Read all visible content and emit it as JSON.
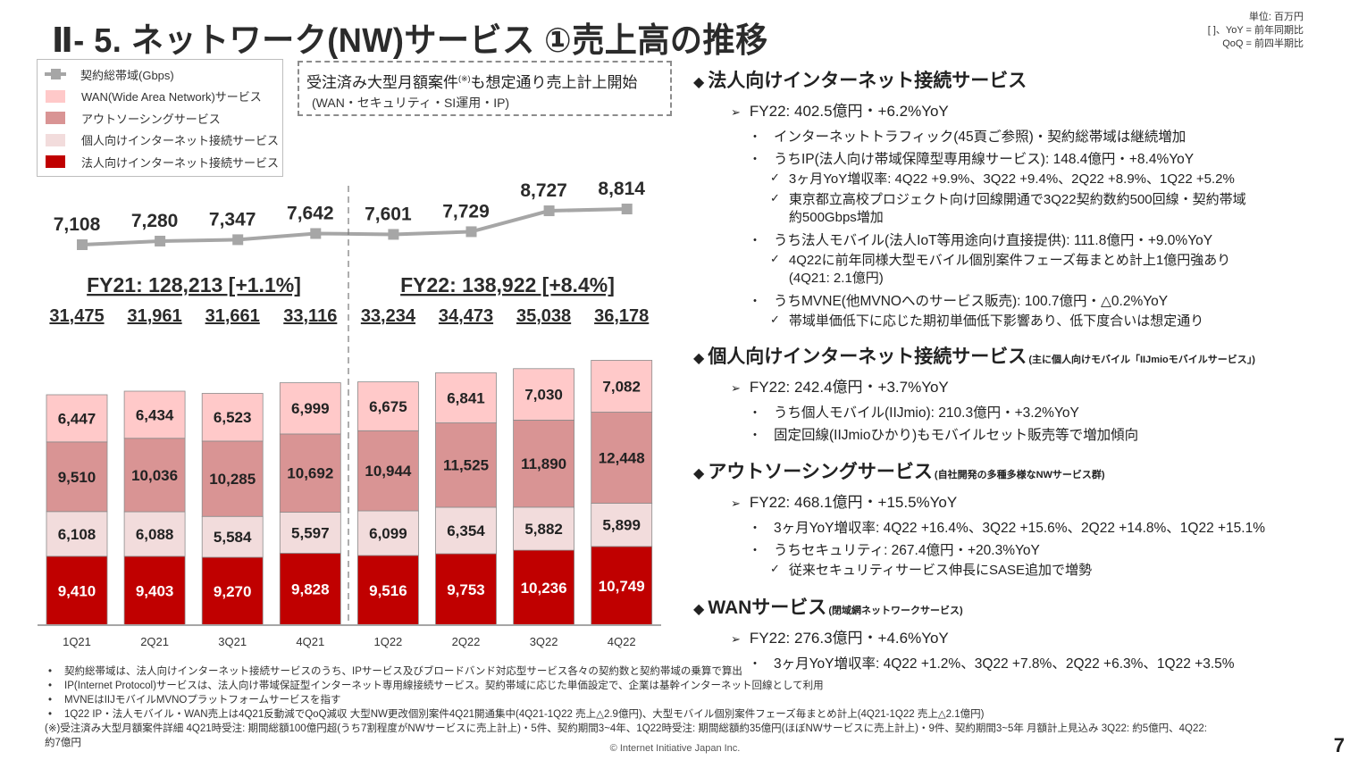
{
  "title": "Ⅱ- 5.  ネットワーク(NW)サービス  ①売上高の推移",
  "unit_note": [
    "単位: 百万円",
    "[ ]、YoY = 前年同期比",
    "QoQ = 前四半期比"
  ],
  "legend": [
    {
      "label": "契約総帯域(Gbps)",
      "icon": "line-marker-icon",
      "color": "#a6a6a6"
    },
    {
      "label": "WAN(Wide Area Network)サービス",
      "color": "#ffc9c9"
    },
    {
      "label": "アウトソーシングサービス",
      "color": "#d99494"
    },
    {
      "label": "個人向けインターネット接続サービス",
      "color": "#f2dcdc"
    },
    {
      "label": "法人向けインターネット接続サービス",
      "color": "#c00000"
    }
  ],
  "callout": {
    "line1": "受注済み大型月額案件",
    "note_mark": "(※)",
    "line1_rest": "も想定通り売上計上開始",
    "line2": "(WAN・セキュリティ・SI運用・IP)"
  },
  "chart_data": {
    "type": "bar",
    "stacked": true,
    "title": "ネットワーク(NW)サービス 売上高の推移",
    "unit": "百万円",
    "categories": [
      "1Q21",
      "2Q21",
      "3Q21",
      "4Q21",
      "1Q22",
      "2Q22",
      "3Q22",
      "4Q22"
    ],
    "series": [
      {
        "name": "法人向けインターネット接続サービス",
        "color": "#c00000",
        "values": [
          9410,
          9403,
          9270,
          9828,
          9516,
          9753,
          10236,
          10749
        ]
      },
      {
        "name": "個人向けインターネット接続サービス",
        "color": "#f2dcdc",
        "values": [
          6108,
          6088,
          5584,
          5597,
          6099,
          6354,
          5882,
          5899
        ]
      },
      {
        "name": "アウトソーシングサービス",
        "color": "#d99494",
        "values": [
          9510,
          10036,
          10285,
          10692,
          10944,
          11525,
          11890,
          12448
        ]
      },
      {
        "name": "WAN(Wide Area Network)サービス",
        "color": "#ffc9c9",
        "values": [
          6447,
          6434,
          6523,
          6999,
          6675,
          6841,
          7030,
          7082
        ]
      }
    ],
    "totals": [
      31475,
      31961,
      31661,
      33116,
      33234,
      34473,
      35038,
      36178
    ],
    "totals_display": [
      "31,475",
      "31,961",
      "31,661",
      "33,116",
      "33,234",
      "34,473",
      "35,038",
      "36,178"
    ],
    "line_series": {
      "name": "契約総帯域(Gbps)",
      "color": "#a6a6a6",
      "values": [
        7108,
        7280,
        7347,
        7642,
        7601,
        7729,
        8727,
        8814
      ],
      "display": [
        "7,108",
        "7,280",
        "7,347",
        "7,642",
        "7,601",
        "7,729",
        "8,727",
        "8,814"
      ]
    },
    "fiscal_years": [
      {
        "label": "FY21: 128,213 [+1.1%]",
        "total": 128213,
        "yoy_pct": 1.1
      },
      {
        "label": "FY22: 138,922 [+8.4%]",
        "total": 138922,
        "yoy_pct": 8.4
      }
    ],
    "xlabel": "",
    "ylabel": "",
    "grid": false,
    "legend_position": "top-left"
  },
  "sections": [
    {
      "heading": "法人向けインターネット接続サービス",
      "sub": "",
      "items": [
        {
          "level": 1,
          "text": "FY22: 402.5億円・+6.2%YoY"
        },
        {
          "level": 2,
          "text": "インターネットトラフィック(45頁ご参照)・契約総帯域は継続増加"
        },
        {
          "level": 2,
          "text": "うちIP(法人向け帯域保障型専用線サービス): 148.4億円・+8.4%YoY"
        },
        {
          "level": 3,
          "text": "3ヶ月YoY増収率: 4Q22 +9.9%、3Q22 +9.4%、2Q22 +8.9%、1Q22 +5.2%"
        },
        {
          "level": 3,
          "text": "東京都立高校プロジェクト向け回線開通で3Q22契約数約500回線・契約帯域\n約500Gbps増加"
        },
        {
          "level": 2,
          "text": "うち法人モバイル(法人IoT等用途向け直接提供): 111.8億円・+9.0%YoY"
        },
        {
          "level": 3,
          "text": "4Q22に前年同様大型モバイル個別案件フェーズ毎まとめ計上1億円強あり\n(4Q21: 2.1億円)"
        },
        {
          "level": 2,
          "text": "うちMVNE(他MVNOへのサービス販売): 100.7億円・△0.2%YoY"
        },
        {
          "level": 3,
          "text": "帯域単価低下に応じた期初単価低下影響あり、低下度合いは想定通り"
        }
      ]
    },
    {
      "heading": "個人向けインターネット接続サービス",
      "sub": "(主に個人向けモバイル「IIJmioモバイルサービス」)",
      "items": [
        {
          "level": 1,
          "text": "FY22: 242.4億円・+3.7%YoY"
        },
        {
          "level": 2,
          "text": "うち個人モバイル(IIJmio): 210.3億円・+3.2%YoY"
        },
        {
          "level": 2,
          "text": "固定回線(IIJmioひかり)もモバイルセット販売等で増加傾向"
        }
      ]
    },
    {
      "heading": "アウトソーシングサービス",
      "sub": "(自社開発の多種多様なNWサービス群)",
      "items": [
        {
          "level": 1,
          "text": "FY22: 468.1億円・+15.5%YoY"
        },
        {
          "level": 2,
          "text": "3ヶ月YoY増収率: 4Q22 +16.4%、3Q22 +15.6%、2Q22 +14.8%、1Q22 +15.1%"
        },
        {
          "level": 2,
          "text": "うちセキュリティ: 267.4億円・+20.3%YoY"
        },
        {
          "level": 3,
          "text": "従来セキュリティサービス伸長にSASE追加で増勢"
        }
      ]
    },
    {
      "heading": "WANサービス",
      "sub": "(閉域網ネットワークサービス)",
      "items": [
        {
          "level": 1,
          "text": "FY22: 276.3億円・+4.6%YoY"
        },
        {
          "level": 2,
          "text": "3ヶ月YoY増収率: 4Q22 +1.2%、3Q22 +7.8%、2Q22 +6.3%、1Q22 +3.5%"
        }
      ]
    }
  ],
  "markers": {
    "section": "◆",
    "level1": "➢",
    "level2": "・",
    "level3": "✓"
  },
  "footnotes": [
    {
      "mark": "•",
      "text": "契約総帯域は、法人向けインターネット接続サービスのうち、IPサービス及びブロードバンド対応型サービス各々の契約数と契約帯域の乗算で算出"
    },
    {
      "mark": "•",
      "text": "IP(Internet Protocol)サービスは、法人向け帯域保証型インターネット専用線接続サービス。契約帯域に応じた単価設定で、企業は基幹インターネット回線として利用"
    },
    {
      "mark": "•",
      "text": "MVNEはIIJモバイルMVNOプラットフォームサービスを指す"
    },
    {
      "mark": "•",
      "text": "1Q22 IP・法人モバイル・WAN売上は4Q21反動減でQoQ減収 大型NW更改個別案件4Q21開通集中(4Q21-1Q22 売上△2.9億円)、大型モバイル個別案件フェーズ毎まとめ計上(4Q21-1Q22 売上△2.1億円)"
    },
    {
      "mark": "",
      "text": "(※)受注済み大型月額案件詳細  4Q21時受注: 期間総額100億円超(うち7割程度がNWサービスに売上計上)・5件、契約期間3~4年、1Q22時受注: 期間総額約35億円(ほぼNWサービスに売上計上)・9件、契約期間3~5年  月額計上見込み 3Q22:  約5億円、4Q22:\n約7億円"
    }
  ],
  "copyright": "© Internet Initiative Japan Inc.",
  "page_number": "7"
}
